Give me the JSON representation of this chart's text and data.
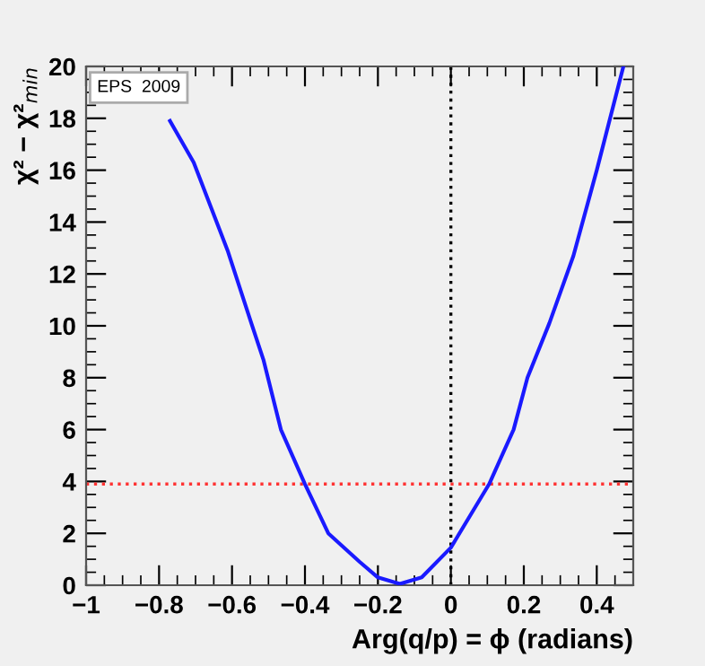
{
  "chart_data": {
    "type": "line",
    "xlabel": "Arg(q/p) = ϕ (radians)",
    "ylabel": "χ² − χ²$_{min}$",
    "series": [
      {
        "color": "#1a1aff",
        "x": [
          -0.77,
          -0.705,
          -0.612,
          -0.547,
          -0.514,
          -0.466,
          -0.4,
          -0.336,
          -0.25,
          -0.2,
          -0.14,
          -0.08,
          0,
          0.105,
          0.172,
          0.21,
          0.27,
          0.336,
          0.4,
          0.473
        ],
        "values": [
          17.9,
          16.3,
          12.9,
          10.1,
          8.7,
          6.0,
          3.9,
          2.0,
          0.9,
          0.3,
          0.05,
          0.3,
          1.45,
          3.9,
          6.0,
          8.0,
          10.1,
          12.7,
          16,
          20
        ]
      }
    ],
    "xlim": [
      -1,
      0.5
    ],
    "xticks": [
      {
        "value": -1,
        "label": "−1"
      },
      {
        "value": -0.8,
        "label": "−0.8"
      },
      {
        "value": -0.6,
        "label": "−0.6"
      },
      {
        "value": -0.4,
        "label": "−0.4"
      },
      {
        "value": -0.2,
        "label": "−0.2"
      },
      0,
      0.2,
      0.4
    ],
    "ylim": [
      0,
      20
    ],
    "yticks": [
      0,
      2,
      4,
      6,
      8,
      10,
      12,
      14,
      16,
      18,
      20
    ],
    "ref_lines": [
      {
        "axis": "y",
        "value": 3.9,
        "color": "#ff3333",
        "line_style": "dotted"
      },
      {
        "axis": "x",
        "value": 0,
        "color": "#000000",
        "line_style": "dotted"
      }
    ],
    "annotations": [
      "EPS  2009"
    ],
    "grid": false,
    "legend": false,
    "line_style": "solid",
    "marker": "none"
  }
}
